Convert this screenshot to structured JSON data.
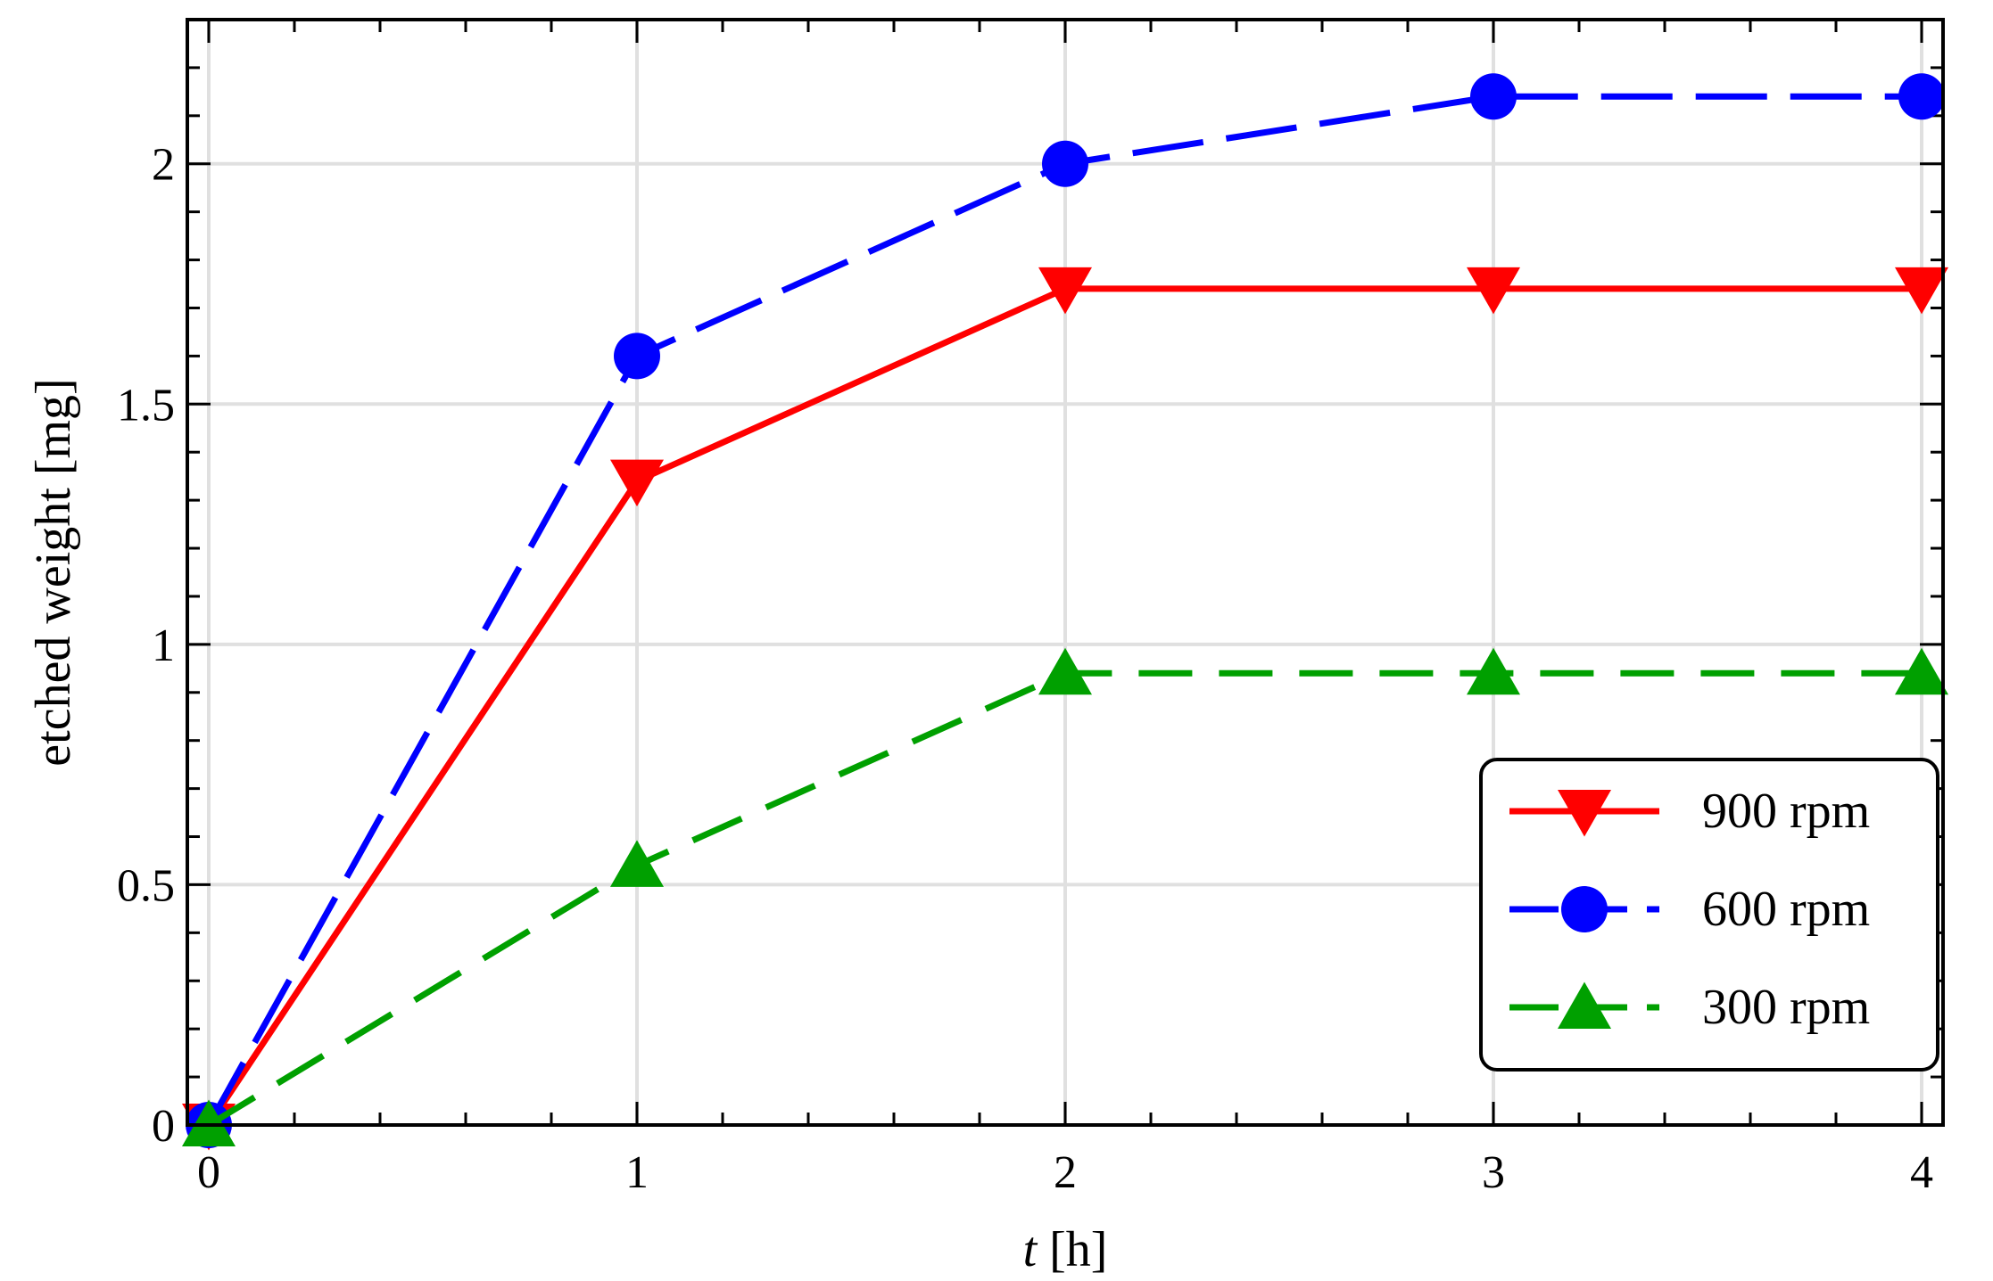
{
  "chart_data": {
    "type": "line",
    "title": "",
    "xlabel_italic": "t",
    "xlabel_rest": " [h]",
    "ylabel": "etched weight [mg]",
    "xlim": [
      -0.05,
      4.05
    ],
    "ylim": [
      0,
      2.3
    ],
    "x_ticks": [
      0,
      1,
      2,
      3,
      4
    ],
    "x_tick_labels": [
      "0",
      "1",
      "2",
      "3",
      "4"
    ],
    "y_ticks": [
      0,
      0.5,
      1,
      1.5,
      2
    ],
    "y_tick_labels": [
      "0",
      "0.5",
      "1",
      "1.5",
      "2"
    ],
    "grid": true,
    "legend_position": "bottom-right",
    "x": [
      0,
      1,
      2,
      3,
      4
    ],
    "series": [
      {
        "name": "900 rpm",
        "values": [
          0,
          1.34,
          1.74,
          1.74,
          1.74
        ],
        "color": "#ff0000",
        "marker": "triangle-down",
        "line": "solid"
      },
      {
        "name": "600 rpm",
        "values": [
          0,
          1.6,
          2.0,
          2.14,
          2.14
        ],
        "color": "#0000ff",
        "marker": "circle",
        "line": "long-dash"
      },
      {
        "name": "300 rpm",
        "values": [
          0,
          0.54,
          0.94,
          0.94,
          0.94
        ],
        "color": "#00a000",
        "marker": "triangle-up",
        "line": "dash"
      }
    ]
  }
}
